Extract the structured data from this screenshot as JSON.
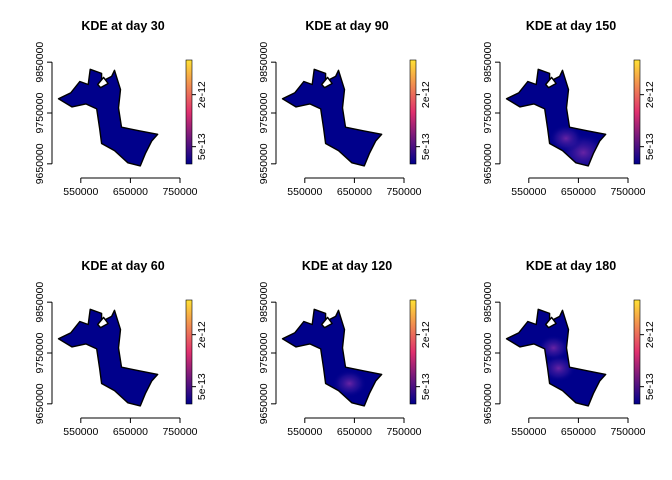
{
  "chart_data": [
    {
      "type": "heatmap",
      "title": "KDE at day 30",
      "day": 30,
      "xticks": [
        550000,
        650000,
        750000
      ],
      "yticks": [
        9650000,
        9750000,
        9850000
      ],
      "xlim": [
        500000,
        750000
      ],
      "ylim": [
        9630000,
        9870000
      ],
      "legend": {
        "placement": "right",
        "ticks": [
          "5e-13",
          "2e-12"
        ],
        "tick_values": [
          5e-13,
          2e-12
        ],
        "range": [
          0,
          3e-12
        ]
      },
      "hotspots": []
    },
    {
      "type": "heatmap",
      "title": "KDE at day 90",
      "day": 90,
      "xticks": [
        550000,
        650000,
        750000
      ],
      "yticks": [
        9650000,
        9750000,
        9850000
      ],
      "xlim": [
        500000,
        750000
      ],
      "ylim": [
        9630000,
        9870000
      ],
      "legend": {
        "placement": "right",
        "ticks": [
          "5e-13",
          "2e-12"
        ],
        "tick_values": [
          5e-13,
          2e-12
        ],
        "range": [
          0,
          3e-12
        ]
      },
      "hotspots": []
    },
    {
      "type": "heatmap",
      "title": "KDE at day 150",
      "day": 150,
      "xticks": [
        550000,
        650000,
        750000
      ],
      "yticks": [
        9650000,
        9750000,
        9850000
      ],
      "xlim": [
        500000,
        750000
      ],
      "ylim": [
        9630000,
        9870000
      ],
      "legend": {
        "placement": "right",
        "ticks": [
          "5e-13",
          "2e-12"
        ],
        "tick_values": [
          5e-13,
          2e-12
        ],
        "range": [
          0,
          3e-12
        ]
      },
      "hotspots": [
        {
          "x": 660000,
          "y": 9672000,
          "value": 6e-13
        },
        {
          "x": 625000,
          "y": 9700000,
          "value": 3e-13
        }
      ]
    },
    {
      "type": "heatmap",
      "title": "KDE at day 60",
      "day": 60,
      "xticks": [
        550000,
        650000,
        750000
      ],
      "yticks": [
        9650000,
        9750000,
        9850000
      ],
      "xlim": [
        500000,
        750000
      ],
      "ylim": [
        9630000,
        9870000
      ],
      "legend": {
        "placement": "right",
        "ticks": [
          "5e-13",
          "2e-12"
        ],
        "tick_values": [
          5e-13,
          2e-12
        ],
        "range": [
          0,
          3e-12
        ]
      },
      "hotspots": []
    },
    {
      "type": "heatmap",
      "title": "KDE at day 120",
      "day": 120,
      "xticks": [
        550000,
        650000,
        750000
      ],
      "yticks": [
        9650000,
        9750000,
        9850000
      ],
      "xlim": [
        500000,
        750000
      ],
      "ylim": [
        9630000,
        9870000
      ],
      "legend": {
        "placement": "right",
        "ticks": [
          "5e-13",
          "2e-12"
        ],
        "tick_values": [
          5e-13,
          2e-12
        ],
        "range": [
          0,
          3e-12
        ]
      },
      "hotspots": [
        {
          "x": 640000,
          "y": 9690000,
          "value": 3e-13
        }
      ]
    },
    {
      "type": "heatmap",
      "title": "KDE at day 180",
      "day": 180,
      "xticks": [
        550000,
        650000,
        750000
      ],
      "yticks": [
        9650000,
        9750000,
        9850000
      ],
      "xlim": [
        500000,
        750000
      ],
      "ylim": [
        9630000,
        9870000
      ],
      "legend": {
        "placement": "right",
        "ticks": [
          "5e-13",
          "2e-12"
        ],
        "tick_values": [
          5e-13,
          2e-12
        ],
        "range": [
          0,
          3e-12
        ]
      },
      "hotspots": [
        {
          "x": 610000,
          "y": 9720000,
          "value": 3e-13
        },
        {
          "x": 600000,
          "y": 9760000,
          "value": 2.5e-13
        }
      ]
    }
  ],
  "colors": {
    "low": "#00008b",
    "mid": "#e0306e",
    "high": "#ffe135",
    "outline": "#000000"
  },
  "region_outline": [
    [
      505000,
      9778000
    ],
    [
      530000,
      9790000
    ],
    [
      548000,
      9812000
    ],
    [
      565000,
      9806000
    ],
    [
      569000,
      9836000
    ],
    [
      592000,
      9828000
    ],
    [
      592000,
      9812000
    ],
    [
      612000,
      9822000
    ],
    [
      618000,
      9834000
    ],
    [
      630000,
      9796000
    ],
    [
      626000,
      9760000
    ],
    [
      632000,
      9722000
    ],
    [
      668000,
      9715000
    ],
    [
      705000,
      9708000
    ],
    [
      693000,
      9695000
    ],
    [
      680000,
      9670000
    ],
    [
      670000,
      9646000
    ],
    [
      645000,
      9652000
    ],
    [
      618000,
      9676000
    ],
    [
      592000,
      9690000
    ],
    [
      588000,
      9720000
    ],
    [
      582000,
      9758000
    ],
    [
      560000,
      9768000
    ],
    [
      532000,
      9762000
    ],
    [
      505000,
      9778000
    ]
  ],
  "region_hole": [
    [
      590000,
      9800000
    ],
    [
      605000,
      9808000
    ],
    [
      596000,
      9820000
    ],
    [
      584000,
      9806000
    ],
    [
      590000,
      9800000
    ]
  ]
}
